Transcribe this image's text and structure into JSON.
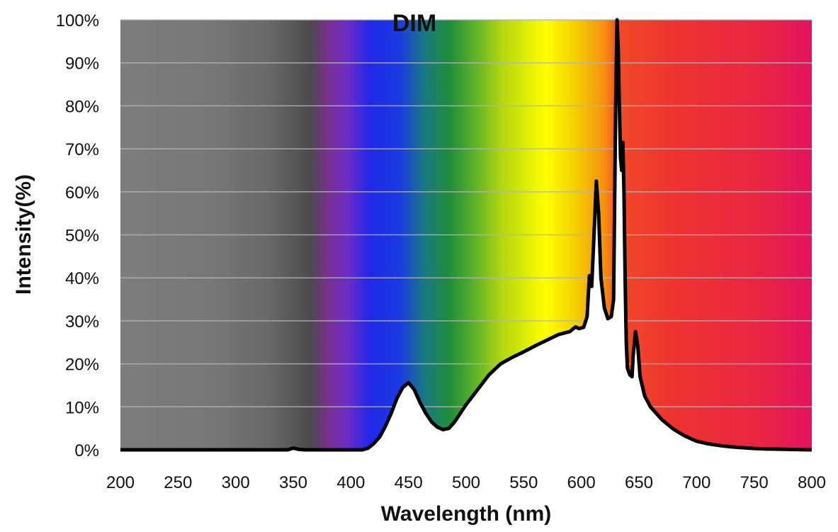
{
  "chart_data": {
    "type": "area",
    "title": "DIM",
    "xlabel": "Wavelength (nm)",
    "ylabel": "Intensity(%)",
    "xlim": [
      200,
      800
    ],
    "ylim": [
      0,
      100
    ],
    "x_ticks": [
      "200",
      "250",
      "300",
      "350",
      "400",
      "450",
      "500",
      "550",
      "600",
      "650",
      "700",
      "750",
      "800"
    ],
    "y_ticks": [
      "0%",
      "10%",
      "20%",
      "30%",
      "40%",
      "50%",
      "60%",
      "70%",
      "80%",
      "90%",
      "100%"
    ],
    "grid": "horizontal",
    "background": "visible spectrum gradient (gray UV region, violet to red)",
    "series": [
      {
        "color": "#000000",
        "fill": "#ffffff",
        "points": [
          [
            200,
            0
          ],
          [
            345,
            0
          ],
          [
            350,
            0.4
          ],
          [
            355,
            0.1
          ],
          [
            360,
            0
          ],
          [
            400,
            0
          ],
          [
            410,
            0
          ],
          [
            415,
            0.4
          ],
          [
            420,
            1.5
          ],
          [
            425,
            3
          ],
          [
            430,
            5.5
          ],
          [
            435,
            8.5
          ],
          [
            440,
            12
          ],
          [
            445,
            14.5
          ],
          [
            450,
            15.6
          ],
          [
            455,
            14
          ],
          [
            460,
            11
          ],
          [
            465,
            8.5
          ],
          [
            470,
            6.5
          ],
          [
            475,
            5.3
          ],
          [
            480,
            4.7
          ],
          [
            485,
            5
          ],
          [
            490,
            6.5
          ],
          [
            495,
            8.5
          ],
          [
            500,
            10.5
          ],
          [
            510,
            14
          ],
          [
            520,
            17.5
          ],
          [
            530,
            20
          ],
          [
            540,
            21.5
          ],
          [
            550,
            22.8
          ],
          [
            560,
            24.2
          ],
          [
            570,
            25.5
          ],
          [
            580,
            26.8
          ],
          [
            590,
            27.5
          ],
          [
            595,
            28.6
          ],
          [
            598,
            28.2
          ],
          [
            602,
            28.5
          ],
          [
            605,
            31
          ],
          [
            607,
            40.5
          ],
          [
            609,
            38
          ],
          [
            611,
            50
          ],
          [
            613,
            62.5
          ],
          [
            615,
            55
          ],
          [
            617,
            40
          ],
          [
            620,
            33
          ],
          [
            623,
            30.5
          ],
          [
            626,
            31
          ],
          [
            628,
            35
          ],
          [
            629,
            60
          ],
          [
            630,
            85
          ],
          [
            631,
            100
          ],
          [
            632,
            93
          ],
          [
            633,
            80
          ],
          [
            634,
            68
          ],
          [
            635,
            65
          ],
          [
            636,
            71.5
          ],
          [
            637,
            60
          ],
          [
            638,
            40
          ],
          [
            639,
            25
          ],
          [
            640,
            19
          ],
          [
            642,
            17.5
          ],
          [
            644,
            17
          ],
          [
            645,
            22
          ],
          [
            647,
            27.5
          ],
          [
            649,
            24
          ],
          [
            651,
            17
          ],
          [
            655,
            12.5
          ],
          [
            660,
            10
          ],
          [
            665,
            8.5
          ],
          [
            670,
            7
          ],
          [
            680,
            4.8
          ],
          [
            690,
            3.2
          ],
          [
            700,
            2
          ],
          [
            710,
            1.4
          ],
          [
            720,
            1
          ],
          [
            730,
            0.7
          ],
          [
            740,
            0.5
          ],
          [
            750,
            0.3
          ],
          [
            760,
            0.2
          ],
          [
            780,
            0.1
          ],
          [
            800,
            0
          ]
        ]
      }
    ]
  }
}
